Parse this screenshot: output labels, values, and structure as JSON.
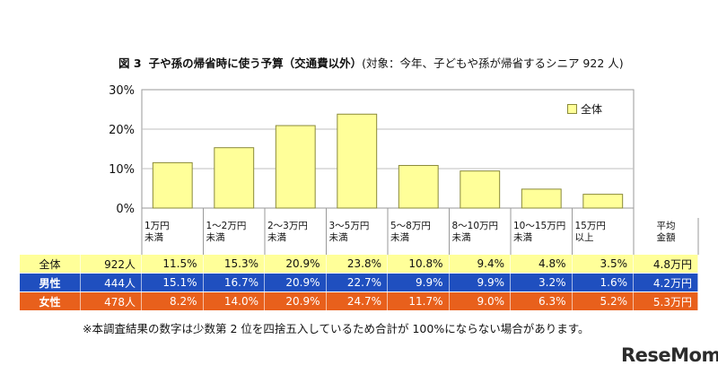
{
  "title": {
    "fig": "図 3",
    "main": "子や孫の帰省時に使う予算（交通費以外）",
    "sub": "(対象：今年、子どもや孫が帰省するシニア 922 人)"
  },
  "legend": {
    "label": "全体"
  },
  "colors": {
    "bar_fill": "#ffff99",
    "bar_stroke": "#8a8a3a",
    "row_all": "#ffff99",
    "row_male": "#1f4fbf",
    "row_female": "#e8601c",
    "grid": "#bfbfbf"
  },
  "chart_data": {
    "type": "bar",
    "categories": [
      "1万円未満",
      "1～2万円未満",
      "2～3万円未満",
      "3～5万円未満",
      "5～8万円未満",
      "8～10万円未満",
      "10～15万円未満",
      "15万円以上"
    ],
    "category_lines": [
      [
        "1万円",
        "未満"
      ],
      [
        "1～2万円",
        "未満"
      ],
      [
        "2～3万円",
        "未満"
      ],
      [
        "3～5万円",
        "未満"
      ],
      [
        "5～8万円",
        "未満"
      ],
      [
        "8～10万円",
        "未満"
      ],
      [
        "10～15万円",
        "未満"
      ],
      [
        "15万円",
        "以上"
      ]
    ],
    "series": [
      {
        "name": "全体",
        "values": [
          11.5,
          15.3,
          20.9,
          23.8,
          10.8,
          9.4,
          4.8,
          3.5
        ]
      }
    ],
    "ylim": [
      0,
      30
    ],
    "yticks": [
      "0%",
      "10%",
      "20%",
      "30%"
    ],
    "grid": true,
    "legend_position": "top-right"
  },
  "table": {
    "avg_header": [
      "平均",
      "金額"
    ],
    "rows": [
      {
        "label": "全体",
        "n": "922人",
        "values": [
          "11.5%",
          "15.3%",
          "20.9%",
          "23.8%",
          "10.8%",
          "9.4%",
          "4.8%",
          "3.5%"
        ],
        "avg": "4.8万円"
      },
      {
        "label": "男性",
        "n": "444人",
        "values": [
          "15.1%",
          "16.7%",
          "20.9%",
          "22.7%",
          "9.9%",
          "9.9%",
          "3.2%",
          "1.6%"
        ],
        "avg": "4.2万円"
      },
      {
        "label": "女性",
        "n": "478人",
        "values": [
          "8.2%",
          "14.0%",
          "20.9%",
          "24.7%",
          "11.7%",
          "9.0%",
          "6.3%",
          "5.2%"
        ],
        "avg": "5.3万円"
      }
    ]
  },
  "note": "※本調査結果の数字は少数第 2 位を四捨五入しているため合計が 100%にならない場合があります。",
  "logo": {
    "text": "ReseMom"
  }
}
